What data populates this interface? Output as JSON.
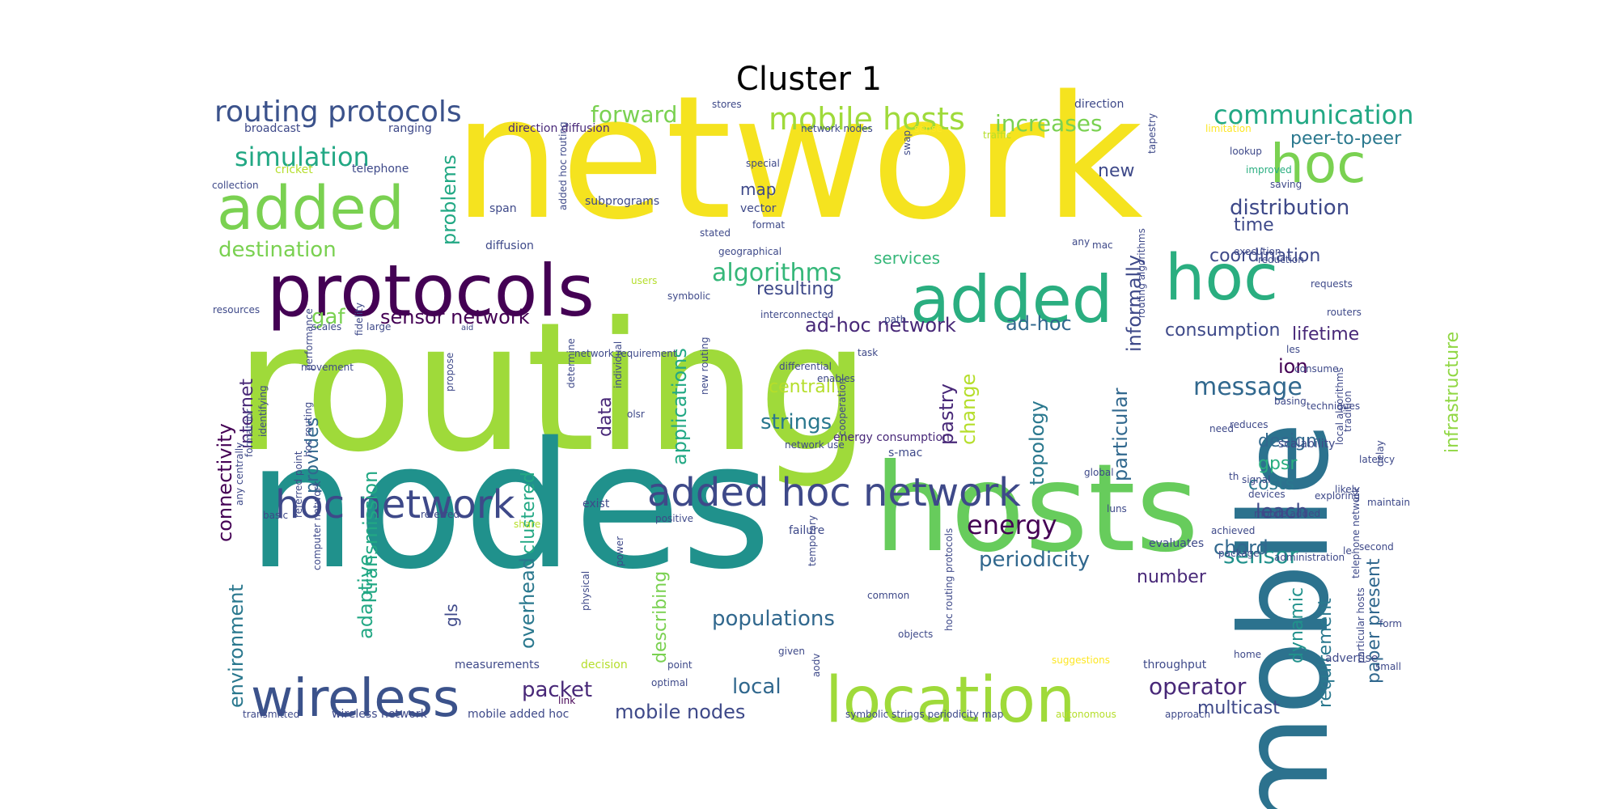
{
  "title": "Cluster 1",
  "words": [
    {
      "text": "network",
      "c": "#f5e31f"
    },
    {
      "text": "routing",
      "c": "#9fda3a"
    },
    {
      "text": "nodes",
      "c": "#20918c"
    },
    {
      "text": "mobile",
      "c": "#2c728e"
    },
    {
      "text": "hosts",
      "c": "#67cc5c"
    },
    {
      "text": "protocols",
      "c": "#440154"
    },
    {
      "text": "added",
      "c": "#7ad151"
    },
    {
      "text": "added",
      "c": "#2aae80"
    },
    {
      "text": "hoc",
      "c": "#7ad151"
    },
    {
      "text": "hoc",
      "c": "#2aae80"
    },
    {
      "text": "location",
      "c": "#9fda3a"
    },
    {
      "text": "wireless",
      "c": "#3b528b"
    },
    {
      "text": "added hoc network",
      "c": "#3e4989"
    },
    {
      "text": "hoc network",
      "c": "#3e4989"
    },
    {
      "text": "routing protocols",
      "c": "#3b528b"
    },
    {
      "text": "mobile hosts",
      "c": "#9fda3a"
    },
    {
      "text": "communication",
      "c": "#22a884"
    },
    {
      "text": "simulation",
      "c": "#22a884"
    },
    {
      "text": "forward",
      "c": "#7ad151"
    },
    {
      "text": "increases",
      "c": "#7ad151"
    },
    {
      "text": "peer-to-peer",
      "c": "#2a788e"
    },
    {
      "text": "destination",
      "c": "#7ad151"
    },
    {
      "text": "distribution",
      "c": "#3e4989"
    },
    {
      "text": "algorithms",
      "c": "#35b779"
    },
    {
      "text": "sensor network",
      "c": "#440154"
    },
    {
      "text": "ad-hoc network",
      "c": "#482878"
    },
    {
      "text": "ad-hoc",
      "c": "#31688e"
    },
    {
      "text": "energy",
      "c": "#440154"
    },
    {
      "text": "periodicity",
      "c": "#31688e"
    },
    {
      "text": "sensor",
      "c": "#21918c"
    },
    {
      "text": "message",
      "c": "#31688e"
    },
    {
      "text": "operator",
      "c": "#482878"
    },
    {
      "text": "populations",
      "c": "#31688e"
    },
    {
      "text": "mobile nodes",
      "c": "#3e4989"
    },
    {
      "text": "local",
      "c": "#31688e"
    },
    {
      "text": "packet",
      "c": "#482878"
    },
    {
      "text": "strings",
      "c": "#2a788e"
    },
    {
      "text": "centrally",
      "c": "#b5de2b"
    },
    {
      "text": "coordination",
      "c": "#3e4989"
    },
    {
      "text": "consumption",
      "c": "#3e4989"
    },
    {
      "text": "lifetime",
      "c": "#482878"
    },
    {
      "text": "time",
      "c": "#3e4989"
    },
    {
      "text": "new",
      "c": "#3e4989"
    },
    {
      "text": "map",
      "c": "#3e4989"
    },
    {
      "text": "services",
      "c": "#35b779"
    },
    {
      "text": "resulting",
      "c": "#3e4989"
    },
    {
      "text": "gaf",
      "c": "#7ad151"
    },
    {
      "text": "informally",
      "c": "#3e4989"
    },
    {
      "text": "infrastructure",
      "c": "#90d743"
    },
    {
      "text": "ion",
      "c": "#440154"
    },
    {
      "text": "design",
      "c": "#31688e"
    },
    {
      "text": "costs",
      "c": "#2a788e"
    },
    {
      "text": "leach",
      "c": "#3e4989"
    },
    {
      "text": "gpsr",
      "c": "#2aae80"
    },
    {
      "text": "chord",
      "c": "#31688e"
    },
    {
      "text": "number",
      "c": "#482878"
    },
    {
      "text": "multicast",
      "c": "#3e4989"
    },
    {
      "text": "requirement",
      "c": "#2a788e"
    },
    {
      "text": "paper present",
      "c": "#31688e"
    },
    {
      "text": "dynamic",
      "c": "#21918c"
    },
    {
      "text": "topology",
      "c": "#2a788e"
    },
    {
      "text": "particular",
      "c": "#31688e"
    },
    {
      "text": "change",
      "c": "#b5de2b"
    },
    {
      "text": "pastry",
      "c": "#482878"
    },
    {
      "text": "applications",
      "c": "#22a884"
    },
    {
      "text": "data",
      "c": "#482878"
    },
    {
      "text": "clustered",
      "c": "#22a884"
    },
    {
      "text": "transmission",
      "c": "#22a884"
    },
    {
      "text": "adaptive",
      "c": "#22a884"
    },
    {
      "text": "provides",
      "c": "#31688e"
    },
    {
      "text": "internet",
      "c": "#482878"
    },
    {
      "text": "connectivity",
      "c": "#440154"
    },
    {
      "text": "environment",
      "c": "#2a788e"
    },
    {
      "text": "gls",
      "c": "#3e4989"
    },
    {
      "text": "overhead",
      "c": "#2a788e"
    },
    {
      "text": "describing",
      "c": "#7ad151"
    },
    {
      "text": "problems",
      "c": "#22a884"
    },
    {
      "text": "energy consumption",
      "c": "#482878"
    },
    {
      "text": "s-mac",
      "c": "#3e4989"
    },
    {
      "text": "scalability",
      "c": "#3e4989"
    },
    {
      "text": "evaluates",
      "c": "#3e4989"
    },
    {
      "text": "throughput",
      "c": "#3e4989"
    },
    {
      "text": "advertise",
      "c": "#3e4989"
    },
    {
      "text": "measurements",
      "c": "#3e4989"
    },
    {
      "text": "decision",
      "c": "#b5de2b"
    },
    {
      "text": "wireless network",
      "c": "#3e4989"
    },
    {
      "text": "mobile added hoc",
      "c": "#3e4989"
    },
    {
      "text": "link",
      "c": "#440154"
    },
    {
      "text": "optimal",
      "c": "#3e4989"
    },
    {
      "text": "point",
      "c": "#3e4989"
    },
    {
      "text": "symbolic strings periodicity map",
      "c": "#3e4989"
    },
    {
      "text": "approach",
      "c": "#3e4989"
    },
    {
      "text": "autonomous",
      "c": "#b5de2b"
    },
    {
      "text": "transmitted",
      "c": "#3e4989"
    },
    {
      "text": "broadcast",
      "c": "#3e4989"
    },
    {
      "text": "ranging",
      "c": "#3e4989"
    },
    {
      "text": "direction diffusion",
      "c": "#482878"
    },
    {
      "text": "network nodes",
      "c": "#3e4989"
    },
    {
      "text": "direction",
      "c": "#3e4989"
    },
    {
      "text": "traffic",
      "c": "#b5de2b"
    },
    {
      "text": "limitation",
      "c": "#fde725"
    },
    {
      "text": "lookup",
      "c": "#3e4989"
    },
    {
      "text": "improved",
      "c": "#2aae80"
    },
    {
      "text": "saving",
      "c": "#3e4989"
    },
    {
      "text": "stores",
      "c": "#3e4989"
    },
    {
      "text": "sense",
      "c": "#fde725"
    },
    {
      "text": "telephone",
      "c": "#3e4989"
    },
    {
      "text": "cricket",
      "c": "#b5de2b"
    },
    {
      "text": "collection",
      "c": "#3e4989"
    },
    {
      "text": "span",
      "c": "#3e4989"
    },
    {
      "text": "subprograms",
      "c": "#3e4989"
    },
    {
      "text": "vector",
      "c": "#3e4989"
    },
    {
      "text": "special",
      "c": "#3e4989"
    },
    {
      "text": "format",
      "c": "#3e4989"
    },
    {
      "text": "stated",
      "c": "#3e4989"
    },
    {
      "text": "diffusion",
      "c": "#3e4989"
    },
    {
      "text": "geographical",
      "c": "#3e4989"
    },
    {
      "text": "any",
      "c": "#3e4989"
    },
    {
      "text": "mac",
      "c": "#3e4989"
    },
    {
      "text": "execution",
      "c": "#3e4989"
    },
    {
      "text": "reduction",
      "c": "#3e4989"
    },
    {
      "text": "requests",
      "c": "#3e4989"
    },
    {
      "text": "routers",
      "c": "#3e4989"
    },
    {
      "text": "resources",
      "c": "#3e4989"
    },
    {
      "text": "users",
      "c": "#b5de2b"
    },
    {
      "text": "symbolic",
      "c": "#3e4989"
    },
    {
      "text": "interconnected",
      "c": "#3e4989"
    },
    {
      "text": "path",
      "c": "#3e4989"
    },
    {
      "text": "scales",
      "c": "#3e4989"
    },
    {
      "text": "large",
      "c": "#3e4989"
    },
    {
      "text": "fidelity",
      "c": "#3e4989"
    },
    {
      "text": "aid",
      "c": "#3e4989"
    },
    {
      "text": "network requirement",
      "c": "#3e4989"
    },
    {
      "text": "task",
      "c": "#3e4989"
    },
    {
      "text": "les",
      "c": "#3e4989"
    },
    {
      "text": "consume",
      "c": "#3e4989"
    },
    {
      "text": "differential",
      "c": "#3e4989"
    },
    {
      "text": "enables",
      "c": "#3e4989"
    },
    {
      "text": "basing",
      "c": "#3e4989"
    },
    {
      "text": "techniques",
      "c": "#3e4989"
    },
    {
      "text": "reduces",
      "c": "#3e4989"
    },
    {
      "text": "need",
      "c": "#3e4989"
    },
    {
      "text": "network use",
      "c": "#3e4989"
    },
    {
      "text": "cooperation",
      "c": "#3e4989"
    },
    {
      "text": "latency",
      "c": "#3e4989"
    },
    {
      "text": "delay",
      "c": "#3e4989"
    },
    {
      "text": "th",
      "c": "#3e4989"
    },
    {
      "text": "devices",
      "c": "#3e4989"
    },
    {
      "text": "likely",
      "c": "#3e4989"
    },
    {
      "text": "movement",
      "c": "#3e4989"
    },
    {
      "text": "performance",
      "c": "#3e4989"
    },
    {
      "text": "identifying",
      "c": "#3e4989"
    },
    {
      "text": "new routing",
      "c": "#3e4989"
    },
    {
      "text": "olsr",
      "c": "#3e4989"
    },
    {
      "text": "propose",
      "c": "#3e4989"
    },
    {
      "text": "individual",
      "c": "#3e4989"
    },
    {
      "text": "determine",
      "c": "#3e4989"
    },
    {
      "text": "luns",
      "c": "#3e4989"
    },
    {
      "text": "global",
      "c": "#3e4989"
    },
    {
      "text": "signal",
      "c": "#3e4989"
    },
    {
      "text": "exploring",
      "c": "#3e4989"
    },
    {
      "text": "maintain",
      "c": "#3e4989"
    },
    {
      "text": "second",
      "c": "#3e4989"
    },
    {
      "text": "le",
      "c": "#3e4989"
    },
    {
      "text": "achieved",
      "c": "#3e4989"
    },
    {
      "text": "mobile added",
      "c": "#3e4989"
    },
    {
      "text": "package",
      "c": "#3e4989"
    },
    {
      "text": "administration",
      "c": "#3e4989"
    },
    {
      "text": "failure",
      "c": "#3e4989"
    },
    {
      "text": "exist",
      "c": "#3e4989"
    },
    {
      "text": "share",
      "c": "#b5de2b"
    },
    {
      "text": "positive",
      "c": "#3e4989"
    },
    {
      "text": "referred",
      "c": "#3e4989"
    },
    {
      "text": "basic",
      "c": "#3e4989"
    },
    {
      "text": "any centrally",
      "c": "#3e4989"
    },
    {
      "text": "format ior",
      "c": "#3e4989"
    },
    {
      "text": "hoc routing",
      "c": "#3e4989"
    },
    {
      "text": "referred point",
      "c": "#3e4989"
    },
    {
      "text": "computer network",
      "c": "#3e4989"
    },
    {
      "text": "physical",
      "c": "#3e4989"
    },
    {
      "text": "power",
      "c": "#3e4989"
    },
    {
      "text": "temporary",
      "c": "#3e4989"
    },
    {
      "text": "common",
      "c": "#3e4989"
    },
    {
      "text": "given",
      "c": "#3e4989"
    },
    {
      "text": "aodv",
      "c": "#3e4989"
    },
    {
      "text": "objects",
      "c": "#3e4989"
    },
    {
      "text": "suggestions",
      "c": "#fde725"
    },
    {
      "text": "home",
      "c": "#3e4989"
    },
    {
      "text": "small",
      "c": "#3e4989"
    },
    {
      "text": "form",
      "c": "#3e4989"
    },
    {
      "text": "particular hosts",
      "c": "#3e4989"
    },
    {
      "text": "telephone network",
      "c": "#3e4989"
    },
    {
      "text": "tradition",
      "c": "#3e4989"
    },
    {
      "text": "hoc routing protocols",
      "c": "#3e4989"
    },
    {
      "text": "tapestry",
      "c": "#3e4989"
    },
    {
      "text": "routing algorithms",
      "c": "#3e4989"
    },
    {
      "text": "added hoc routing",
      "c": "#3e4989"
    },
    {
      "text": "swap",
      "c": "#3e4989"
    },
    {
      "text": "local algorithms",
      "c": "#3e4989"
    }
  ]
}
